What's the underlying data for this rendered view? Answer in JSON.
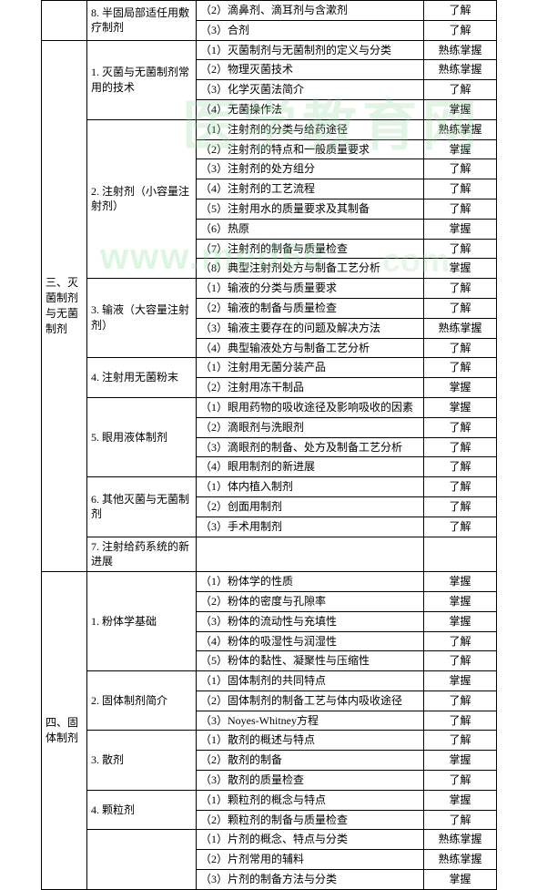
{
  "watermarks": {
    "w1": "医学教育网",
    "w2": "www.med66",
    "w3": ".com"
  },
  "levels": {
    "l1": "了解",
    "l2": "掌握",
    "l3": "熟练掌握"
  },
  "sections": [
    {
      "cat": "",
      "sub": "8. 半固局部适任用敷疗制剂",
      "rows": [
        {
          "t": "（2）滴鼻剂、滴耳剂与含漱剂",
          "lv": "l1"
        },
        {
          "t": "（3）合剂",
          "lv": "l1"
        }
      ]
    },
    {
      "cat": "三、灭菌制剂与无菌制剂",
      "sub": "1. 灭菌与无菌制剂常用的技术",
      "rows": [
        {
          "t": "（1）灭菌制剂与无菌制剂的定义与分类",
          "lv": "l3"
        },
        {
          "t": "（2）物理灭菌技术",
          "lv": "l3"
        },
        {
          "t": "（3）化学灭菌法简介",
          "lv": "l1"
        },
        {
          "t": "（4）无菌操作法",
          "lv": "l2"
        }
      ]
    },
    {
      "sub": "2. 注射剂（小容量注射剂）",
      "rows": [
        {
          "t": "（1）注射剂的分类与给药途径",
          "lv": "l3"
        },
        {
          "t": "（2）注射剂的特点和一般质量要求",
          "lv": "l2"
        },
        {
          "t": "（3）注射剂的处方组分",
          "lv": "l1"
        },
        {
          "t": "（4）注射剂的工艺流程",
          "lv": "l1"
        },
        {
          "t": "（5）注射用水的质量要求及其制备",
          "lv": "l1"
        },
        {
          "t": "（6）热原",
          "lv": "l2"
        },
        {
          "t": "（7）注射剂的制备与质量检查",
          "lv": "l1"
        },
        {
          "t": "（8）典型注射剂处方与制备工艺分析",
          "lv": "l2"
        }
      ]
    },
    {
      "sub": "3. 输液（大容量注射剂）",
      "rows": [
        {
          "t": "（1）输液的分类与质量要求",
          "lv": "l1"
        },
        {
          "t": "（2）输液的制备与质量检查",
          "lv": "l1"
        },
        {
          "t": "（3）输液主要存在的问题及解决方法",
          "lv": "l3"
        },
        {
          "t": "（4）典型输液处方与制备工艺分析",
          "lv": "l1"
        }
      ]
    },
    {
      "sub": "4. 注射用无菌粉末",
      "rows": [
        {
          "t": "（1）注射用无菌分装产品",
          "lv": "l1"
        },
        {
          "t": "（2）注射用冻干制品",
          "lv": "l2"
        }
      ]
    },
    {
      "sub": "5. 眼用液体制剂",
      "rows": [
        {
          "t": "（1）眼用药物的吸收途径及影响吸收的因素",
          "lv": "l2"
        },
        {
          "t": "（2）滴眼剂与洗眼剂",
          "lv": "l1"
        },
        {
          "t": "（3）滴眼剂的制备、处方及制备工艺分析",
          "lv": "l1"
        },
        {
          "t": "（4）眼用制剂的新进展",
          "lv": "l1"
        }
      ]
    },
    {
      "sub": "6. 其他灭菌与无菌制剂",
      "rows": [
        {
          "t": "（1）体内植入制剂",
          "lv": "l1"
        },
        {
          "t": "（2）创面用制剂",
          "lv": "l1"
        },
        {
          "t": "（3）手术用制剂",
          "lv": "l1"
        }
      ]
    },
    {
      "sub": "7. 注射给药系统的新进展",
      "rows": [
        {
          "t": "",
          "lv": ""
        }
      ]
    },
    {
      "cat": "四、固体制剂",
      "sub": "1. 粉体学基础",
      "rows": [
        {
          "t": "（1）粉体学的性质",
          "lv": "l2"
        },
        {
          "t": "（2）粉体的密度与孔隙率",
          "lv": "l2"
        },
        {
          "t": "（3）粉体的流动性与充填性",
          "lv": "l2"
        },
        {
          "t": "（4）粉体的吸湿性与润湿性",
          "lv": "l1"
        },
        {
          "t": "（5）粉体的黏性、凝聚性与压缩性",
          "lv": "l1"
        }
      ]
    },
    {
      "sub": "2. 固体制剂简介",
      "rows": [
        {
          "t": "（1）固体制剂的共同特点",
          "lv": "l2"
        },
        {
          "t": "（2）固体制剂的制备工艺与体内吸收途径",
          "lv": "l1"
        },
        {
          "t": "（3）Noyes-Whitney方程",
          "lv": "l1"
        }
      ]
    },
    {
      "sub": "3. 散剂",
      "rows": [
        {
          "t": "（1）散剂的概述与特点",
          "lv": "l1"
        },
        {
          "t": "（2）散剂的制备",
          "lv": "l2"
        },
        {
          "t": "（3）散剂的质量检查",
          "lv": "l1"
        }
      ]
    },
    {
      "sub": "4. 颗粒剂",
      "rows": [
        {
          "t": "（1）颗粒剂的概念与特点",
          "lv": "l2"
        },
        {
          "t": "（2）颗粒剂的制备与质量检查",
          "lv": "l1"
        }
      ]
    },
    {
      "sub": "",
      "rows": [
        {
          "t": "（1）片剂的概念、特点与分类",
          "lv": "l3"
        },
        {
          "t": "（2）片剂常用的辅料",
          "lv": "l3"
        },
        {
          "t": "（3）片剂的制备方法与分类",
          "lv": "l2"
        }
      ]
    }
  ]
}
